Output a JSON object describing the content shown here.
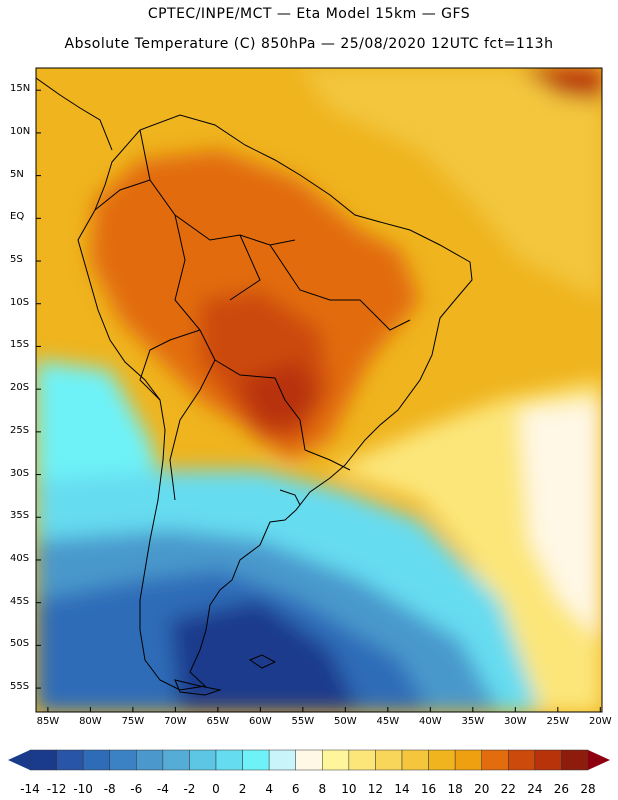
{
  "titles": {
    "line1": "CPTEC/INPE/MCT —  Eta Model 15km — GFS",
    "line2": "Absolute Temperature (C) 850hPa — 25/08/2020 12UTC fct=113h"
  },
  "map": {
    "region": "South America",
    "variable": "Absolute Temperature (C) 850hPa",
    "lat_range": [
      -58,
      17
    ],
    "lon_range": [
      -86,
      -20
    ],
    "lat_ticks": [
      "15N",
      "10N",
      "5N",
      "EQ",
      "5S",
      "10S",
      "15S",
      "20S",
      "25S",
      "30S",
      "35S",
      "40S",
      "45S",
      "50S",
      "55S"
    ],
    "lat_values": [
      15,
      10,
      5,
      0,
      -5,
      -10,
      -15,
      -20,
      -25,
      -30,
      -35,
      -40,
      -45,
      -50,
      -55
    ],
    "lon_ticks": [
      "85W",
      "80W",
      "75W",
      "70W",
      "65W",
      "60W",
      "55W",
      "50W",
      "45W",
      "40W",
      "35W",
      "30W",
      "25W",
      "20W"
    ],
    "lon_values": [
      -85,
      -80,
      -75,
      -70,
      -65,
      -60,
      -55,
      -50,
      -45,
      -40,
      -35,
      -30,
      -25,
      -20
    ]
  },
  "colorbar": {
    "labels": [
      "-14",
      "-12",
      "-10",
      "-8",
      "-6",
      "-4",
      "-2",
      "0",
      "2",
      "4",
      "6",
      "8",
      "10",
      "12",
      "14",
      "16",
      "18",
      "20",
      "22",
      "24",
      "26",
      "28"
    ],
    "colors": [
      "#1a3a8c",
      "#2855a8",
      "#2f6cb8",
      "#3a82c4",
      "#4a98cc",
      "#55acd6",
      "#5cc6e4",
      "#66dcf0",
      "#6ef2f8",
      "#c8f4fa",
      "#fff8e6",
      "#fff59a",
      "#fce67a",
      "#f8d65a",
      "#f3c63c",
      "#efb41e",
      "#eea010",
      "#e26c0e",
      "#cc4a0c",
      "#b8320a",
      "#8e1c0c"
    ],
    "low_color": "#1a3a8c",
    "high_color": "#8e0010"
  }
}
